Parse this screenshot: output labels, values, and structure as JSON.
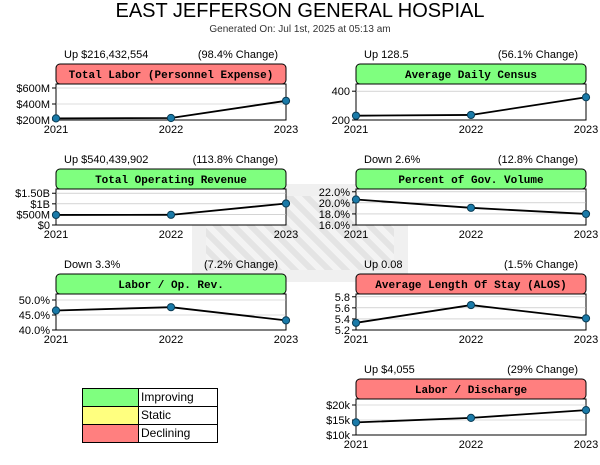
{
  "header": {
    "title": "EAST JEFFERSON GENERAL HOSPIAL",
    "generated": "Generated On: Jul 1st, 2025 at 05:13 am"
  },
  "colors": {
    "improving": "#7fff7f",
    "static": "#ffff7f",
    "declining": "#ff7f7f"
  },
  "legend": [
    {
      "label": "Improving",
      "color": "#7fff7f"
    },
    {
      "label": "Static",
      "color": "#ffff7f"
    },
    {
      "label": "Declining",
      "color": "#ff7f7f"
    }
  ],
  "chart_data": [
    {
      "type": "line",
      "title": "Total Labor (Personnel Expense)",
      "status": "declining",
      "change_label": "Up $216,432,554",
      "pct_label": "(98.4% Change)",
      "categories": [
        "2021",
        "2022",
        "2023"
      ],
      "values": [
        220,
        225,
        440
      ],
      "ylim": [
        200,
        650
      ],
      "yticks": [
        200,
        400,
        600
      ],
      "yticklabels": [
        "$200M",
        "$400M",
        "$600M"
      ]
    },
    {
      "type": "line",
      "title": "Average Daily Census",
      "status": "improving",
      "change_label": "Up 128.5",
      "pct_label": "(56.1% Change)",
      "categories": [
        "2021",
        "2022",
        "2023"
      ],
      "values": [
        230,
        235,
        358
      ],
      "ylim": [
        200,
        450
      ],
      "yticks": [
        200,
        400
      ],
      "yticklabels": [
        "200",
        "400"
      ]
    },
    {
      "type": "line",
      "title": "Total Operating Revenue",
      "status": "improving",
      "change_label": "Up $540,439,902",
      "pct_label": "(113.8% Change)",
      "categories": [
        "2021",
        "2022",
        "2023"
      ],
      "values": [
        475,
        480,
        1015
      ],
      "ylim": [
        0,
        1700
      ],
      "yticks": [
        0,
        500,
        1000,
        1500
      ],
      "yticklabels": [
        "$0",
        "$500M",
        "$1B",
        "$1.50B"
      ]
    },
    {
      "type": "line",
      "title": "Percent of Gov. Volume",
      "status": "improving",
      "change_label": "Down 2.6%",
      "pct_label": "(12.8% Change)",
      "categories": [
        "2021",
        "2022",
        "2023"
      ],
      "values": [
        20.6,
        19.1,
        18.0
      ],
      "ylim": [
        16,
        22.5
      ],
      "yticks": [
        16,
        18,
        20,
        22
      ],
      "yticklabels": [
        "16.0%",
        "18.0%",
        "20.0%",
        "22.0%"
      ]
    },
    {
      "type": "line",
      "title": "Labor / Op. Rev.",
      "status": "improving",
      "change_label": "Down 3.3%",
      "pct_label": "(7.2% Change)",
      "categories": [
        "2021",
        "2022",
        "2023"
      ],
      "values": [
        46.5,
        47.6,
        43.2
      ],
      "ylim": [
        40,
        52
      ],
      "yticks": [
        40,
        45,
        50
      ],
      "yticklabels": [
        "40.0%",
        "45.0%",
        "50.0%"
      ]
    },
    {
      "type": "line",
      "title": "Average Length Of Stay (ALOS)",
      "status": "declining",
      "change_label": "Up 0.08",
      "pct_label": "(1.5% Change)",
      "categories": [
        "2021",
        "2022",
        "2023"
      ],
      "values": [
        5.33,
        5.65,
        5.41
      ],
      "ylim": [
        5.2,
        5.85
      ],
      "yticks": [
        5.2,
        5.4,
        5.6,
        5.8
      ],
      "yticklabels": [
        "5.2",
        "5.4",
        "5.6",
        "5.8"
      ]
    },
    {
      "type": "line",
      "title": "Labor / Discharge",
      "status": "declining",
      "change_label": "Up $4,055",
      "pct_label": "(29% Change)",
      "categories": [
        "2021",
        "2022",
        "2023"
      ],
      "values": [
        14200,
        15700,
        18300
      ],
      "ylim": [
        10000,
        22000
      ],
      "yticks": [
        10000,
        15000,
        20000
      ],
      "yticklabels": [
        "$10k",
        "$15k",
        "$20k"
      ]
    }
  ]
}
